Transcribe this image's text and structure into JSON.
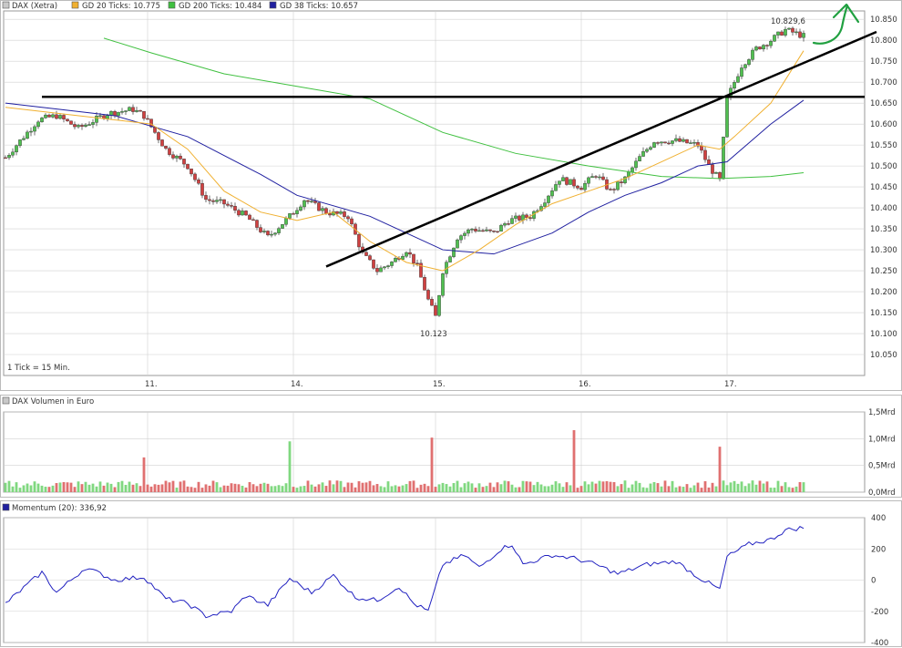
{
  "price_panel": {
    "legend": [
      {
        "label": "DAX (Xetra)",
        "color": "#c8c8c8"
      },
      {
        "label": "GD 20 Ticks: 10.775",
        "color": "#f0b030"
      },
      {
        "label": "GD 200 Ticks: 10.484",
        "color": "#40c040"
      },
      {
        "label": "GD 38 Ticks: 10.657",
        "color": "#2020a0"
      }
    ],
    "tick_note": "1 Tick = 15 Min.",
    "high_label": "10.829,6",
    "low_label": "10.123"
  },
  "volume_panel": {
    "legend": {
      "label": "DAX Volumen in Euro",
      "color": "#c8c8c8"
    }
  },
  "momentum_panel": {
    "legend": {
      "label": "Momentum (20): 336,92",
      "color": "#2020a0"
    }
  },
  "colors": {
    "up": "#50c050",
    "down": "#d04040",
    "grid": "#d0d0d0",
    "trendline": "#000000",
    "annotation": "#20a040"
  },
  "chart_data": [
    {
      "type": "candlestick",
      "x": [
        "11.",
        "14.",
        "15.",
        "16.",
        "17."
      ],
      "y_ticks": [
        "10.850",
        "10.800",
        "10.750",
        "10.700",
        "10.650",
        "10.600",
        "10.550",
        "10.500",
        "10.450",
        "10.400",
        "10.350",
        "10.300",
        "10.250",
        "10.200",
        "10.150",
        "10.100",
        "10.050"
      ],
      "ylim": [
        10000,
        10870
      ],
      "key_points": [
        {
          "x": 0,
          "close": 10520
        },
        {
          "x": 9,
          "close": 10610
        },
        {
          "x": 14,
          "close": 10620
        },
        {
          "x": 20,
          "close": 10590
        },
        {
          "x": 28,
          "close": 10625
        },
        {
          "x": 35,
          "close": 10635
        },
        {
          "x": 38,
          "close": 10620
        },
        {
          "x": 44,
          "close": 10540
        },
        {
          "x": 50,
          "close": 10500
        },
        {
          "x": 55,
          "close": 10420
        },
        {
          "x": 60,
          "close": 10410
        },
        {
          "x": 66,
          "close": 10380
        },
        {
          "x": 72,
          "close": 10330
        },
        {
          "x": 78,
          "close": 10380
        },
        {
          "x": 82,
          "close": 10420
        },
        {
          "x": 88,
          "close": 10390
        },
        {
          "x": 94,
          "close": 10380
        },
        {
          "x": 98,
          "close": 10290
        },
        {
          "x": 102,
          "close": 10250
        },
        {
          "x": 106,
          "close": 10270
        },
        {
          "x": 110,
          "close": 10300
        },
        {
          "x": 113,
          "close": 10260
        },
        {
          "x": 116,
          "close": 10180
        },
        {
          "x": 118,
          "close": 10140
        },
        {
          "x": 120,
          "close": 10250
        },
        {
          "x": 124,
          "close": 10330
        },
        {
          "x": 128,
          "close": 10350
        },
        {
          "x": 134,
          "close": 10340
        },
        {
          "x": 138,
          "close": 10370
        },
        {
          "x": 144,
          "close": 10380
        },
        {
          "x": 148,
          "close": 10420
        },
        {
          "x": 152,
          "close": 10470
        },
        {
          "x": 158,
          "close": 10450
        },
        {
          "x": 162,
          "close": 10480
        },
        {
          "x": 166,
          "close": 10440
        },
        {
          "x": 170,
          "close": 10470
        },
        {
          "x": 174,
          "close": 10520
        },
        {
          "x": 178,
          "close": 10560
        },
        {
          "x": 184,
          "close": 10560
        },
        {
          "x": 190,
          "close": 10550
        },
        {
          "x": 193,
          "close": 10500
        },
        {
          "x": 196,
          "close": 10465
        },
        {
          "x": 198,
          "close": 10660
        },
        {
          "x": 202,
          "close": 10740
        },
        {
          "x": 206,
          "close": 10780
        },
        {
          "x": 210,
          "close": 10800
        },
        {
          "x": 214,
          "close": 10825
        },
        {
          "x": 219,
          "close": 10810
        }
      ],
      "sma20": [
        {
          "x": 0,
          "y": 10640
        },
        {
          "x": 40,
          "y": 10600
        },
        {
          "x": 50,
          "y": 10540
        },
        {
          "x": 60,
          "y": 10440
        },
        {
          "x": 70,
          "y": 10390
        },
        {
          "x": 80,
          "y": 10370
        },
        {
          "x": 90,
          "y": 10390
        },
        {
          "x": 100,
          "y": 10320
        },
        {
          "x": 110,
          "y": 10270
        },
        {
          "x": 120,
          "y": 10250
        },
        {
          "x": 130,
          "y": 10300
        },
        {
          "x": 140,
          "y": 10360
        },
        {
          "x": 150,
          "y": 10410
        },
        {
          "x": 160,
          "y": 10440
        },
        {
          "x": 170,
          "y": 10470
        },
        {
          "x": 180,
          "y": 10510
        },
        {
          "x": 190,
          "y": 10550
        },
        {
          "x": 196,
          "y": 10540
        },
        {
          "x": 200,
          "y": 10570
        },
        {
          "x": 210,
          "y": 10650
        },
        {
          "x": 219,
          "y": 10775
        }
      ],
      "sma38": [
        {
          "x": 0,
          "y": 10650
        },
        {
          "x": 30,
          "y": 10620
        },
        {
          "x": 50,
          "y": 10570
        },
        {
          "x": 70,
          "y": 10480
        },
        {
          "x": 80,
          "y": 10430
        },
        {
          "x": 100,
          "y": 10380
        },
        {
          "x": 110,
          "y": 10340
        },
        {
          "x": 120,
          "y": 10300
        },
        {
          "x": 134,
          "y": 10290
        },
        {
          "x": 150,
          "y": 10340
        },
        {
          "x": 160,
          "y": 10390
        },
        {
          "x": 170,
          "y": 10430
        },
        {
          "x": 180,
          "y": 10460
        },
        {
          "x": 190,
          "y": 10500
        },
        {
          "x": 198,
          "y": 10510
        },
        {
          "x": 210,
          "y": 10600
        },
        {
          "x": 219,
          "y": 10657
        }
      ],
      "sma200": [
        {
          "x": 27,
          "y": 10805
        },
        {
          "x": 40,
          "y": 10770
        },
        {
          "x": 60,
          "y": 10720
        },
        {
          "x": 80,
          "y": 10690
        },
        {
          "x": 100,
          "y": 10660
        },
        {
          "x": 120,
          "y": 10580
        },
        {
          "x": 140,
          "y": 10530
        },
        {
          "x": 160,
          "y": 10500
        },
        {
          "x": 180,
          "y": 10475
        },
        {
          "x": 196,
          "y": 10470
        },
        {
          "x": 210,
          "y": 10475
        },
        {
          "x": 219,
          "y": 10484
        }
      ],
      "horizontal_line": 10665,
      "trend_line": [
        {
          "x": 88,
          "y": 10260
        },
        {
          "x": 239,
          "y": 10820
        }
      ]
    },
    {
      "type": "bar",
      "y_ticks": [
        "1,5Mrd",
        "1,0Mrd",
        "0,5Mrd",
        "0,0Mrd"
      ],
      "ylim": [
        0,
        1.5
      ],
      "spikes": [
        {
          "x": 38,
          "value": 0.65
        },
        {
          "x": 78,
          "value": 0.95
        },
        {
          "x": 117,
          "value": 1.02
        },
        {
          "x": 156,
          "value": 1.16
        },
        {
          "x": 196,
          "value": 0.85
        }
      ]
    },
    {
      "type": "line",
      "y_ticks": [
        "400",
        "200",
        "0",
        "-200",
        "-400"
      ],
      "ylim": [
        -400,
        400
      ],
      "key_points": [
        {
          "x": 0,
          "y": -150
        },
        {
          "x": 5,
          "y": -50
        },
        {
          "x": 10,
          "y": 50
        },
        {
          "x": 14,
          "y": -80
        },
        {
          "x": 22,
          "y": 80
        },
        {
          "x": 30,
          "y": 0
        },
        {
          "x": 38,
          "y": 20
        },
        {
          "x": 44,
          "y": -120
        },
        {
          "x": 50,
          "y": -150
        },
        {
          "x": 55,
          "y": -230
        },
        {
          "x": 62,
          "y": -200
        },
        {
          "x": 66,
          "y": -100
        },
        {
          "x": 72,
          "y": -160
        },
        {
          "x": 78,
          "y": 10
        },
        {
          "x": 84,
          "y": -80
        },
        {
          "x": 90,
          "y": 30
        },
        {
          "x": 96,
          "y": -110
        },
        {
          "x": 102,
          "y": -130
        },
        {
          "x": 108,
          "y": -40
        },
        {
          "x": 112,
          "y": -150
        },
        {
          "x": 116,
          "y": -200
        },
        {
          "x": 120,
          "y": 100
        },
        {
          "x": 126,
          "y": 160
        },
        {
          "x": 130,
          "y": 80
        },
        {
          "x": 136,
          "y": 200
        },
        {
          "x": 139,
          "y": 230
        },
        {
          "x": 142,
          "y": 100
        },
        {
          "x": 150,
          "y": 160
        },
        {
          "x": 156,
          "y": 140
        },
        {
          "x": 162,
          "y": 100
        },
        {
          "x": 168,
          "y": 40
        },
        {
          "x": 176,
          "y": 100
        },
        {
          "x": 184,
          "y": 120
        },
        {
          "x": 190,
          "y": 20
        },
        {
          "x": 196,
          "y": -60
        },
        {
          "x": 198,
          "y": 150
        },
        {
          "x": 204,
          "y": 230
        },
        {
          "x": 210,
          "y": 260
        },
        {
          "x": 214,
          "y": 320
        },
        {
          "x": 219,
          "y": 337
        }
      ]
    }
  ]
}
